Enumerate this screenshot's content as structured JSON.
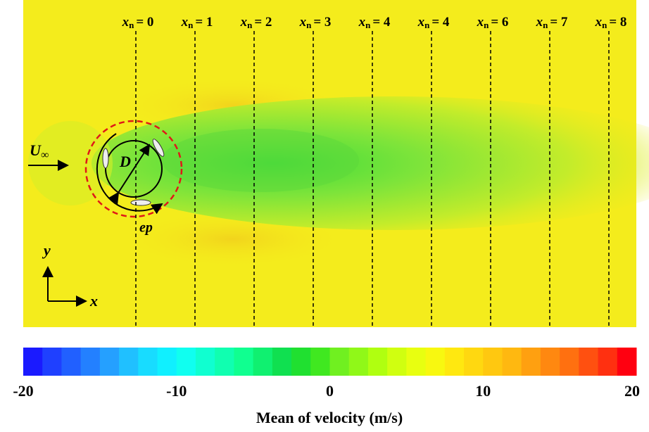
{
  "chart_data": {
    "type": "contour",
    "colorbar": {
      "label": "Mean of velocity (m/s)",
      "lim": [
        -20,
        20
      ],
      "ticks": [
        -20,
        -10,
        0,
        10,
        20
      ],
      "colors": [
        "#1a1aff",
        "#1f40ff",
        "#2160ff",
        "#2380ff",
        "#25a0ff",
        "#20c0ff",
        "#18dcff",
        "#10f0ff",
        "#10fff0",
        "#10ffd0",
        "#10ffb0",
        "#10ff90",
        "#10f070",
        "#10e050",
        "#20e030",
        "#40e820",
        "#70f020",
        "#90f818",
        "#b0ff10",
        "#d0ff10",
        "#e8ff10",
        "#f8f810",
        "#ffe810",
        "#ffd810",
        "#ffc810",
        "#ffb810",
        "#ffa010",
        "#ff8810",
        "#ff7010",
        "#ff5010",
        "#ff3010",
        "#ff0010"
      ]
    },
    "sections": {
      "symbol": "x",
      "subscript": "n",
      "labels": [
        "= 0",
        "= 1",
        "= 2",
        "= 3",
        "= 4",
        "= 4",
        "= 6",
        "= 7",
        "= 8"
      ]
    },
    "annotations": {
      "inflow": "U",
      "inflow_sub": "∞",
      "diameter": "D",
      "perimeter": "ep",
      "y_axis": "y",
      "x_axis": "x"
    }
  }
}
